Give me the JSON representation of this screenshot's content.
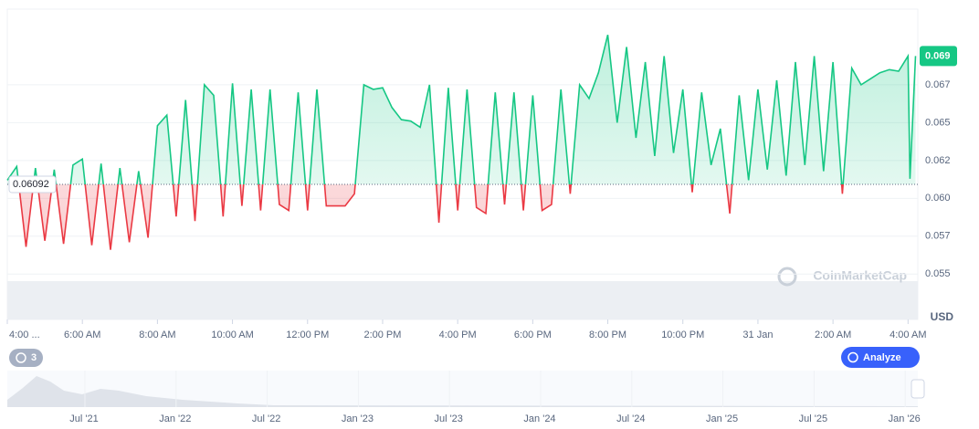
{
  "chart_data": {
    "type": "line",
    "x": [
      0,
      0.25,
      0.5,
      0.75,
      1,
      1.25,
      1.5,
      1.75,
      2,
      2.25,
      2.5,
      2.75,
      3,
      3.25,
      3.5,
      3.75,
      4,
      4.25,
      4.5,
      4.75,
      5,
      5.25,
      5.5,
      5.75,
      6,
      6.25,
      6.5,
      6.75,
      7,
      7.25,
      7.5,
      7.75,
      8,
      8.25,
      8.5,
      8.75,
      9,
      9.25,
      9.5,
      9.75,
      10,
      10.25,
      10.5,
      10.75,
      11,
      11.25,
      11.5,
      11.75,
      12,
      12.25,
      12.5,
      12.75,
      13,
      13.25,
      13.5,
      13.75,
      14,
      14.25,
      14.5,
      14.75,
      15,
      15.25,
      15.5,
      15.75,
      16,
      16.25,
      16.5,
      16.75,
      17,
      17.25,
      17.5,
      17.75,
      18,
      18.25,
      18.5,
      18.75,
      19,
      19.25,
      19.5,
      19.75,
      20,
      20.25,
      20.5,
      20.75,
      21,
      21.25,
      21.5,
      21.75,
      22,
      22.25,
      22.5,
      22.75,
      23,
      23.25,
      23.5,
      23.75,
      24,
      24.05,
      24.2
    ],
    "values": [
      0.0612,
      0.0621,
      0.0568,
      0.062,
      0.0572,
      0.0619,
      0.057,
      0.0622,
      0.0626,
      0.0569,
      0.0623,
      0.0566,
      0.062,
      0.0571,
      0.0618,
      0.0574,
      0.0648,
      0.0655,
      0.0588,
      0.0665,
      0.0585,
      0.0675,
      0.0668,
      0.0588,
      0.0676,
      0.0595,
      0.0672,
      0.0592,
      0.0672,
      0.0596,
      0.0592,
      0.067,
      0.0592,
      0.0672,
      0.0595,
      0.0595,
      0.0595,
      0.0603,
      0.0675,
      0.0672,
      0.0673,
      0.066,
      0.0652,
      0.0651,
      0.0647,
      0.0675,
      0.0584,
      0.0673,
      0.0592,
      0.0672,
      0.0594,
      0.059,
      0.067,
      0.0596,
      0.067,
      0.0592,
      0.0668,
      0.0592,
      0.0596,
      0.0672,
      0.0603,
      0.0675,
      0.0666,
      0.0683,
      0.0708,
      0.065,
      0.07,
      0.064,
      0.069,
      0.0628,
      0.0694,
      0.063,
      0.0672,
      0.0604,
      0.067,
      0.0622,
      0.0646,
      0.059,
      0.0668,
      0.0612,
      0.0672,
      0.0619,
      0.0678,
      0.0615,
      0.069,
      0.0622,
      0.0694,
      0.0618,
      0.069,
      0.0603,
      0.0686,
      0.0675,
      0.0679,
      0.0683,
      0.0685,
      0.0684,
      0.0694,
      0.0613,
      0.0694
    ],
    "up_color": "#16c784",
    "down_color": "#ea3943",
    "baseline": {
      "value": 0.06092,
      "label": "0.06092"
    },
    "current_price": {
      "value": 0.0694,
      "label": "0.069"
    },
    "xlim": [
      0,
      24.26
    ],
    "xticks": [
      {
        "value": 0,
        "label": "4:00 ..."
      },
      {
        "value": 2,
        "label": "6:00 AM"
      },
      {
        "value": 4,
        "label": "8:00 AM"
      },
      {
        "value": 6,
        "label": "10:00 AM"
      },
      {
        "value": 8,
        "label": "12:00 PM"
      },
      {
        "value": 10,
        "label": "2:00 PM"
      },
      {
        "value": 12,
        "label": "4:00 PM"
      },
      {
        "value": 14,
        "label": "6:00 PM"
      },
      {
        "value": 16,
        "label": "8:00 PM"
      },
      {
        "value": 18,
        "label": "10:00 PM"
      },
      {
        "value": 20,
        "label": "31 Jan"
      },
      {
        "value": 22,
        "label": "2:00 AM"
      },
      {
        "value": 24,
        "label": "4:00 AM"
      }
    ],
    "ylim": [
      0.052,
      0.0725
    ],
    "yticks": [
      {
        "value": 0.0675,
        "label": "0.067"
      },
      {
        "value": 0.065,
        "label": "0.065"
      },
      {
        "value": 0.0625,
        "label": "0.062"
      },
      {
        "value": 0.06,
        "label": "0.060"
      },
      {
        "value": 0.0575,
        "label": "0.057"
      },
      {
        "value": 0.055,
        "label": "0.055"
      }
    ],
    "currency": "USD",
    "watermark": "CoinMarketCap",
    "history_badge": "3",
    "analyze_button": "Analyze",
    "navigator_labels": [
      "Jul '21",
      "Jan '22",
      "Jul '22",
      "Jan '23",
      "Jul '23",
      "Jan '24",
      "Jul '24",
      "Jan '25",
      "Jul '25",
      "Jan '26"
    ],
    "grid": true
  }
}
